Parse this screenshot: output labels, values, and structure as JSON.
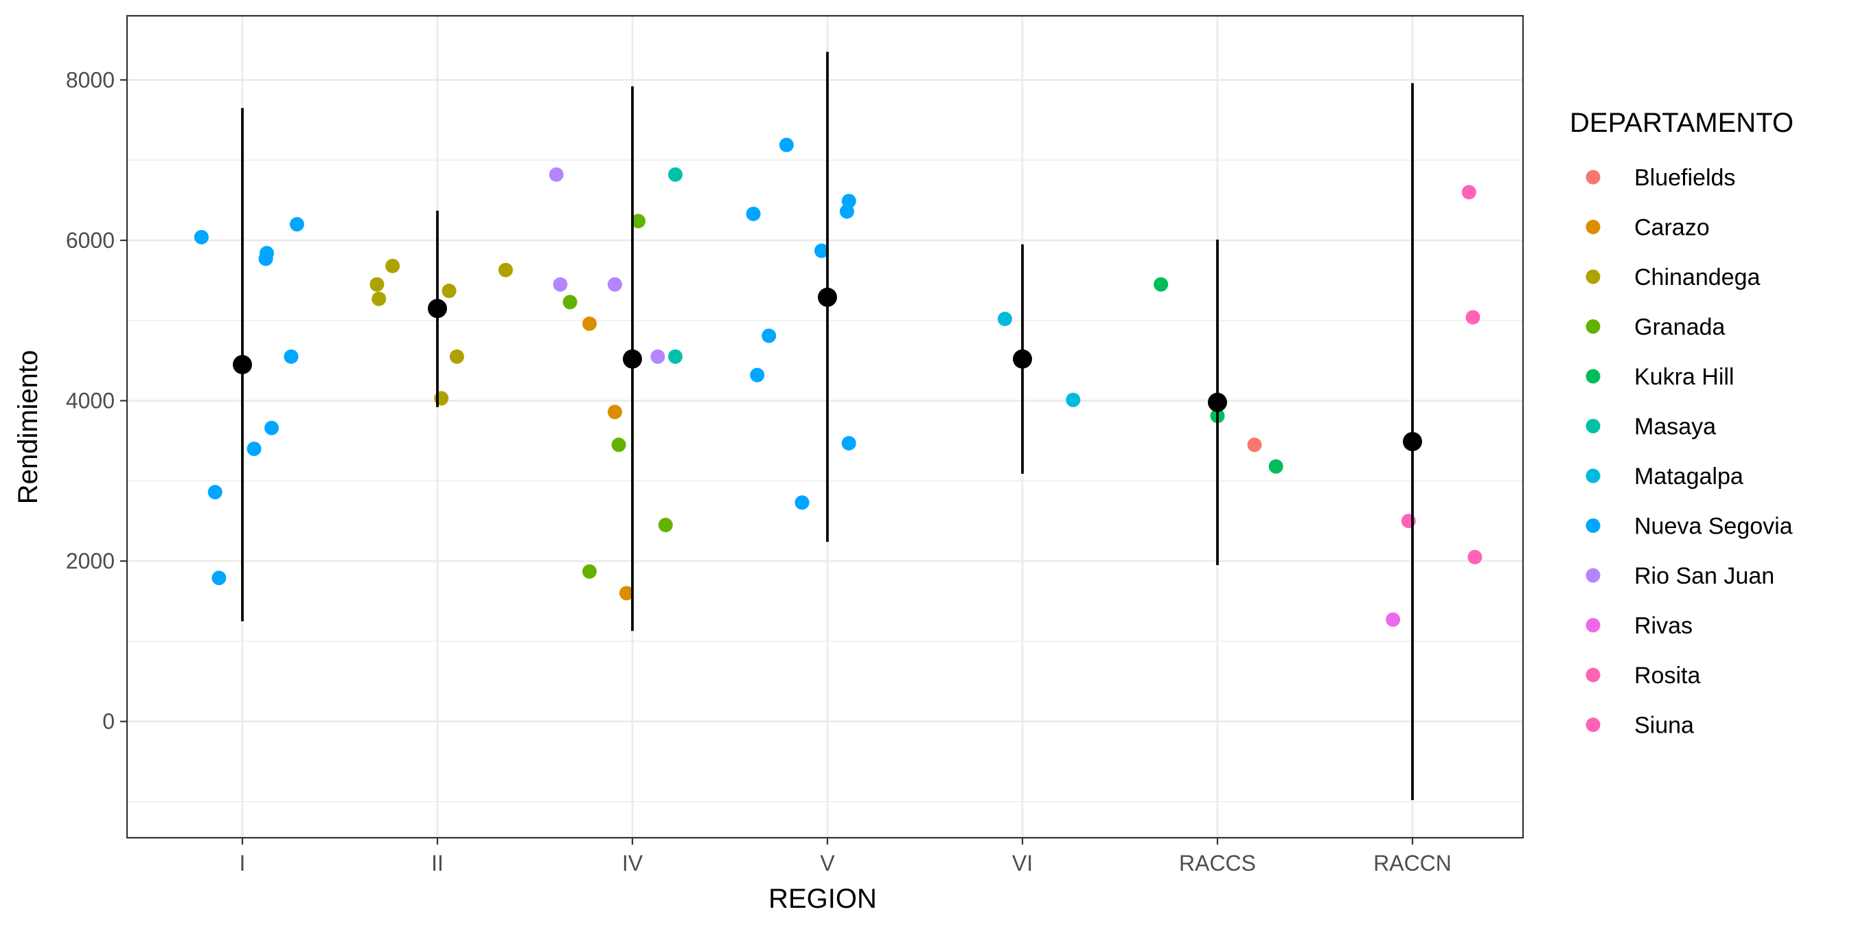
{
  "chart_data": {
    "type": "scatter",
    "xlabel": "REGION",
    "ylabel": "Rendimiento",
    "categories": [
      "I",
      "II",
      "IV",
      "V",
      "VI",
      "RACCS",
      "RACCN"
    ],
    "yticks": [
      0,
      2000,
      4000,
      6000,
      8000
    ],
    "ylim": [
      -1450,
      8800
    ],
    "grid": true,
    "legend": {
      "title": "DEPARTAMENTO",
      "position": "right",
      "entries": [
        {
          "name": "Bluefields",
          "color": "#F8766D"
        },
        {
          "name": "Carazo",
          "color": "#DB8E00"
        },
        {
          "name": "Chinandega",
          "color": "#AEA200"
        },
        {
          "name": "Granada",
          "color": "#64B200"
        },
        {
          "name": "Kukra Hill",
          "color": "#00BD5C"
        },
        {
          "name": "Masaya",
          "color": "#00C1A7"
        },
        {
          "name": "Matagalpa",
          "color": "#00BADE"
        },
        {
          "name": "Nueva Segovia",
          "color": "#00A6FF"
        },
        {
          "name": "Rio San Juan",
          "color": "#B385FF"
        },
        {
          "name": "Rivas",
          "color": "#EF67EB"
        },
        {
          "name": "Rosita",
          "color": "#FF63B6"
        },
        {
          "name": "Siuna",
          "color": "#FF63B6"
        }
      ]
    },
    "summary": {
      "color": "#000000",
      "points": [
        {
          "region": "I",
          "mean": 4450,
          "lower": 1250,
          "upper": 7650
        },
        {
          "region": "II",
          "mean": 5150,
          "lower": 3920,
          "upper": 6370
        },
        {
          "region": "IV",
          "mean": 4520,
          "lower": 1130,
          "upper": 7920
        },
        {
          "region": "V",
          "mean": 5290,
          "lower": 2240,
          "upper": 8350
        },
        {
          "region": "VI",
          "mean": 4520,
          "lower": 3090,
          "upper": 5950
        },
        {
          "region": "RACCS",
          "mean": 3980,
          "lower": 1950,
          "upper": 6010
        },
        {
          "region": "RACCN",
          "mean": 3490,
          "lower": -980,
          "upper": 7960
        }
      ]
    },
    "points": [
      {
        "region": "I",
        "jitter": -0.21,
        "y": 6040,
        "dept": "Nueva Segovia"
      },
      {
        "region": "I",
        "jitter": -0.14,
        "y": 2860,
        "dept": "Nueva Segovia"
      },
      {
        "region": "I",
        "jitter": -0.12,
        "y": 1790,
        "dept": "Nueva Segovia"
      },
      {
        "region": "I",
        "jitter": 0.06,
        "y": 3400,
        "dept": "Nueva Segovia"
      },
      {
        "region": "I",
        "jitter": 0.12,
        "y": 5770,
        "dept": "Nueva Segovia"
      },
      {
        "region": "I",
        "jitter": 0.125,
        "y": 5840,
        "dept": "Nueva Segovia"
      },
      {
        "region": "I",
        "jitter": 0.15,
        "y": 3660,
        "dept": "Nueva Segovia"
      },
      {
        "region": "I",
        "jitter": 0.25,
        "y": 4550,
        "dept": "Nueva Segovia"
      },
      {
        "region": "I",
        "jitter": 0.28,
        "y": 6200,
        "dept": "Nueva Segovia"
      },
      {
        "region": "II",
        "jitter": -0.31,
        "y": 5450,
        "dept": "Chinandega"
      },
      {
        "region": "II",
        "jitter": -0.3,
        "y": 5270,
        "dept": "Chinandega"
      },
      {
        "region": "II",
        "jitter": -0.23,
        "y": 5680,
        "dept": "Chinandega"
      },
      {
        "region": "II",
        "jitter": 0.02,
        "y": 4030,
        "dept": "Chinandega"
      },
      {
        "region": "II",
        "jitter": 0.06,
        "y": 5370,
        "dept": "Chinandega"
      },
      {
        "region": "II",
        "jitter": 0.1,
        "y": 4550,
        "dept": "Chinandega"
      },
      {
        "region": "II",
        "jitter": 0.35,
        "y": 5630,
        "dept": "Chinandega"
      },
      {
        "region": "IV",
        "jitter": -0.39,
        "y": 6820,
        "dept": "Rio San Juan"
      },
      {
        "region": "IV",
        "jitter": -0.37,
        "y": 5450,
        "dept": "Rio San Juan"
      },
      {
        "region": "IV",
        "jitter": -0.32,
        "y": 5230,
        "dept": "Granada"
      },
      {
        "region": "IV",
        "jitter": -0.22,
        "y": 1870,
        "dept": "Granada"
      },
      {
        "region": "IV",
        "jitter": -0.22,
        "y": 4960,
        "dept": "Carazo"
      },
      {
        "region": "IV",
        "jitter": -0.09,
        "y": 5450,
        "dept": "Rio San Juan"
      },
      {
        "region": "IV",
        "jitter": -0.09,
        "y": 3860,
        "dept": "Carazo"
      },
      {
        "region": "IV",
        "jitter": -0.07,
        "y": 3450,
        "dept": "Granada"
      },
      {
        "region": "IV",
        "jitter": -0.03,
        "y": 1600,
        "dept": "Carazo"
      },
      {
        "region": "IV",
        "jitter": 0.03,
        "y": 6240,
        "dept": "Granada"
      },
      {
        "region": "IV",
        "jitter": 0.13,
        "y": 4550,
        "dept": "Rio San Juan"
      },
      {
        "region": "IV",
        "jitter": 0.17,
        "y": 2450,
        "dept": "Granada"
      },
      {
        "region": "IV",
        "jitter": 0.22,
        "y": 6820,
        "dept": "Masaya"
      },
      {
        "region": "IV",
        "jitter": 0.22,
        "y": 4550,
        "dept": "Masaya"
      },
      {
        "region": "V",
        "jitter": -0.38,
        "y": 6330,
        "dept": "Nueva Segovia"
      },
      {
        "region": "V",
        "jitter": -0.36,
        "y": 4320,
        "dept": "Nueva Segovia"
      },
      {
        "region": "V",
        "jitter": -0.3,
        "y": 4810,
        "dept": "Nueva Segovia"
      },
      {
        "region": "V",
        "jitter": -0.21,
        "y": 7190,
        "dept": "Nueva Segovia"
      },
      {
        "region": "V",
        "jitter": -0.13,
        "y": 2730,
        "dept": "Nueva Segovia"
      },
      {
        "region": "V",
        "jitter": -0.03,
        "y": 5870,
        "dept": "Nueva Segovia"
      },
      {
        "region": "V",
        "jitter": 0.1,
        "y": 6360,
        "dept": "Nueva Segovia"
      },
      {
        "region": "V",
        "jitter": 0.11,
        "y": 6490,
        "dept": "Nueva Segovia"
      },
      {
        "region": "V",
        "jitter": 0.11,
        "y": 3470,
        "dept": "Nueva Segovia"
      },
      {
        "region": "VI",
        "jitter": -0.09,
        "y": 5020,
        "dept": "Matagalpa"
      },
      {
        "region": "VI",
        "jitter": 0.26,
        "y": 4010,
        "dept": "Matagalpa"
      },
      {
        "region": "RACCS",
        "jitter": -0.29,
        "y": 5450,
        "dept": "Kukra Hill"
      },
      {
        "region": "RACCS",
        "jitter": 0.0,
        "y": 3810,
        "dept": "Kukra Hill"
      },
      {
        "region": "RACCS",
        "jitter": 0.19,
        "y": 3450,
        "dept": "Bluefields"
      },
      {
        "region": "RACCS",
        "jitter": 0.3,
        "y": 3180,
        "dept": "Kukra Hill"
      },
      {
        "region": "RACCN",
        "jitter": -0.1,
        "y": 1270,
        "dept": "Rivas"
      },
      {
        "region": "RACCN",
        "jitter": -0.02,
        "y": 2500,
        "dept": "Rosita"
      },
      {
        "region": "RACCN",
        "jitter": 0.29,
        "y": 6600,
        "dept": "Rosita"
      },
      {
        "region": "RACCN",
        "jitter": 0.31,
        "y": 5040,
        "dept": "Rosita"
      },
      {
        "region": "RACCN",
        "jitter": 0.32,
        "y": 2050,
        "dept": "Rosita"
      }
    ]
  }
}
